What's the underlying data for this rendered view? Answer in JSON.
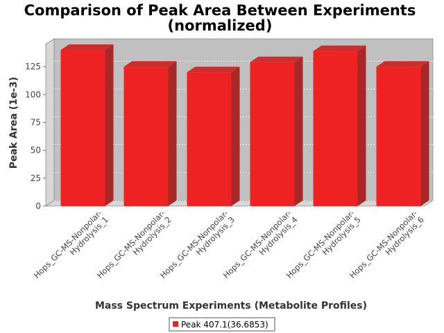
{
  "chart_data": {
    "type": "bar",
    "title_lines": [
      "Comparison of Peak Area Between Experiments",
      "(normalized)"
    ],
    "xlabel": "Mass Spectrum Experiments (Metabolite Profiles)",
    "ylabel": "Peak Area (1e-3)",
    "ylim": [
      0,
      140
    ],
    "yticks": [
      0,
      25,
      50,
      75,
      100,
      125
    ],
    "grid": true,
    "legend_position": "bottom",
    "categories": [
      [
        "Hops_GC-MS-Nonpolar-",
        "Hydrolysis_1"
      ],
      [
        "Hops_GC-MS-Nonpolar-",
        "Hydrolysis_2"
      ],
      [
        "Hops_GC-MS-Nonpolar-",
        "Hydrolysis_3"
      ],
      [
        "Hops_GC-MS-Nonpolar-",
        "Hydrolysis_4"
      ],
      [
        "Hops_GC-MS-Nonpolar-",
        "Hydrolysis_5"
      ],
      [
        "Hops_GC-MS-Nonpolar-",
        "Hydrolysis_6"
      ]
    ],
    "series": [
      {
        "name": "Peak 407.1(36.6853)",
        "color": "#ee2222",
        "values": [
          140,
          125,
          120,
          129,
          139,
          125
        ]
      }
    ]
  },
  "colors": {
    "plot_background": "#c0c0c0",
    "plot_wall": "#d8d8d8",
    "bar_front": "#ee2222",
    "bar_side": "#a82828",
    "bar_top": "#c83030"
  }
}
